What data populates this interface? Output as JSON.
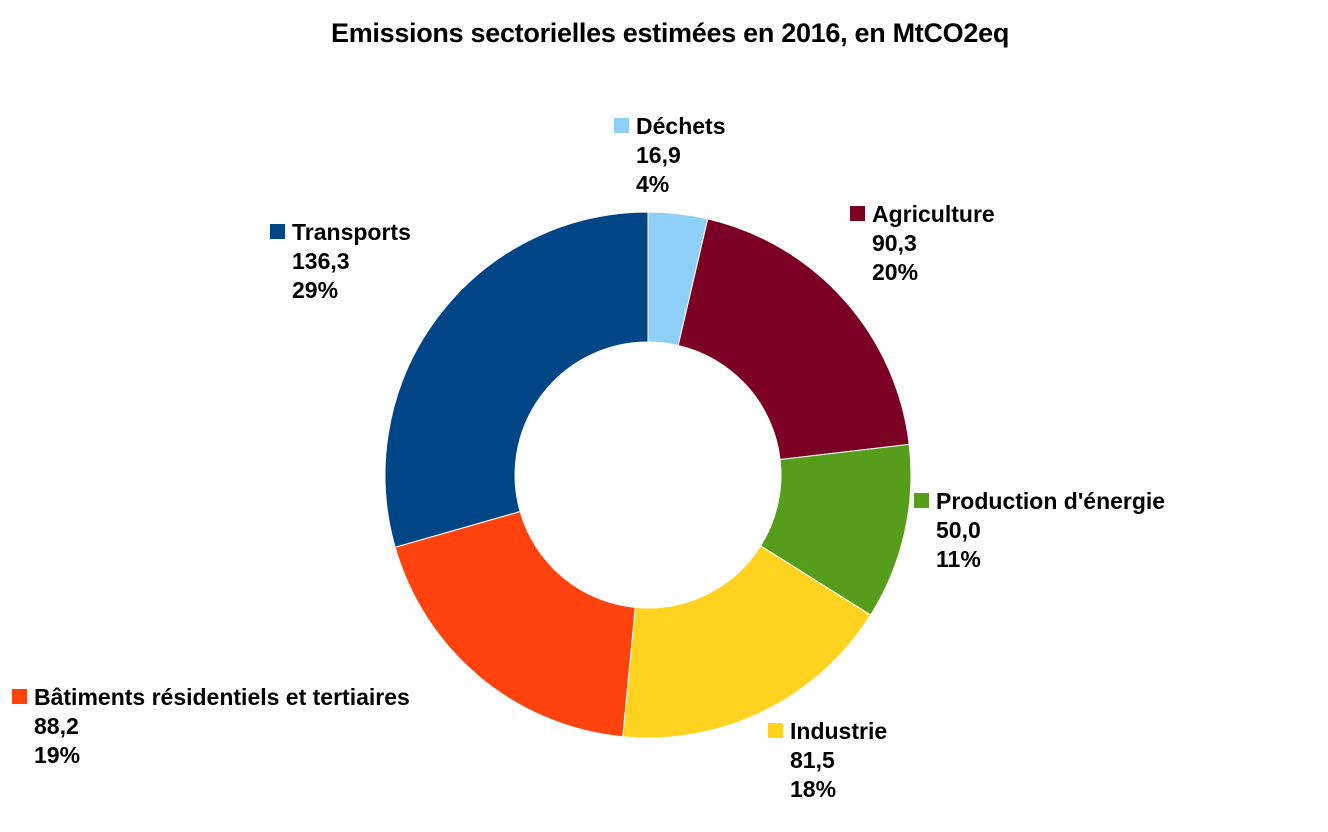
{
  "chart_data": {
    "type": "pie",
    "donut": true,
    "title": "Emissions sectorielles estimées en 2016, en MtCO2eq",
    "legend": "none",
    "slices": [
      {
        "label": "Déchets",
        "value": 16.9,
        "value_text": "16,9",
        "percent_text": "4%",
        "color": "#8ecff7"
      },
      {
        "label": "Agriculture",
        "value": 90.3,
        "value_text": "90,3",
        "percent_text": "20%",
        "color": "#7b0024"
      },
      {
        "label": "Production d'énergie",
        "value": 50.0,
        "value_text": "50,0",
        "percent_text": "11%",
        "color": "#579d1c"
      },
      {
        "label": "Industrie",
        "value": 81.5,
        "value_text": "81,5",
        "percent_text": "18%",
        "color": "#ffd320"
      },
      {
        "label": "Bâtiments résidentiels et tertiaires",
        "value": 88.2,
        "value_text": "88,2",
        "percent_text": "19%",
        "color": "#ff420e"
      },
      {
        "label": "Transports",
        "value": 136.3,
        "value_text": "136,3",
        "percent_text": "29%",
        "color": "#004586"
      }
    ]
  }
}
